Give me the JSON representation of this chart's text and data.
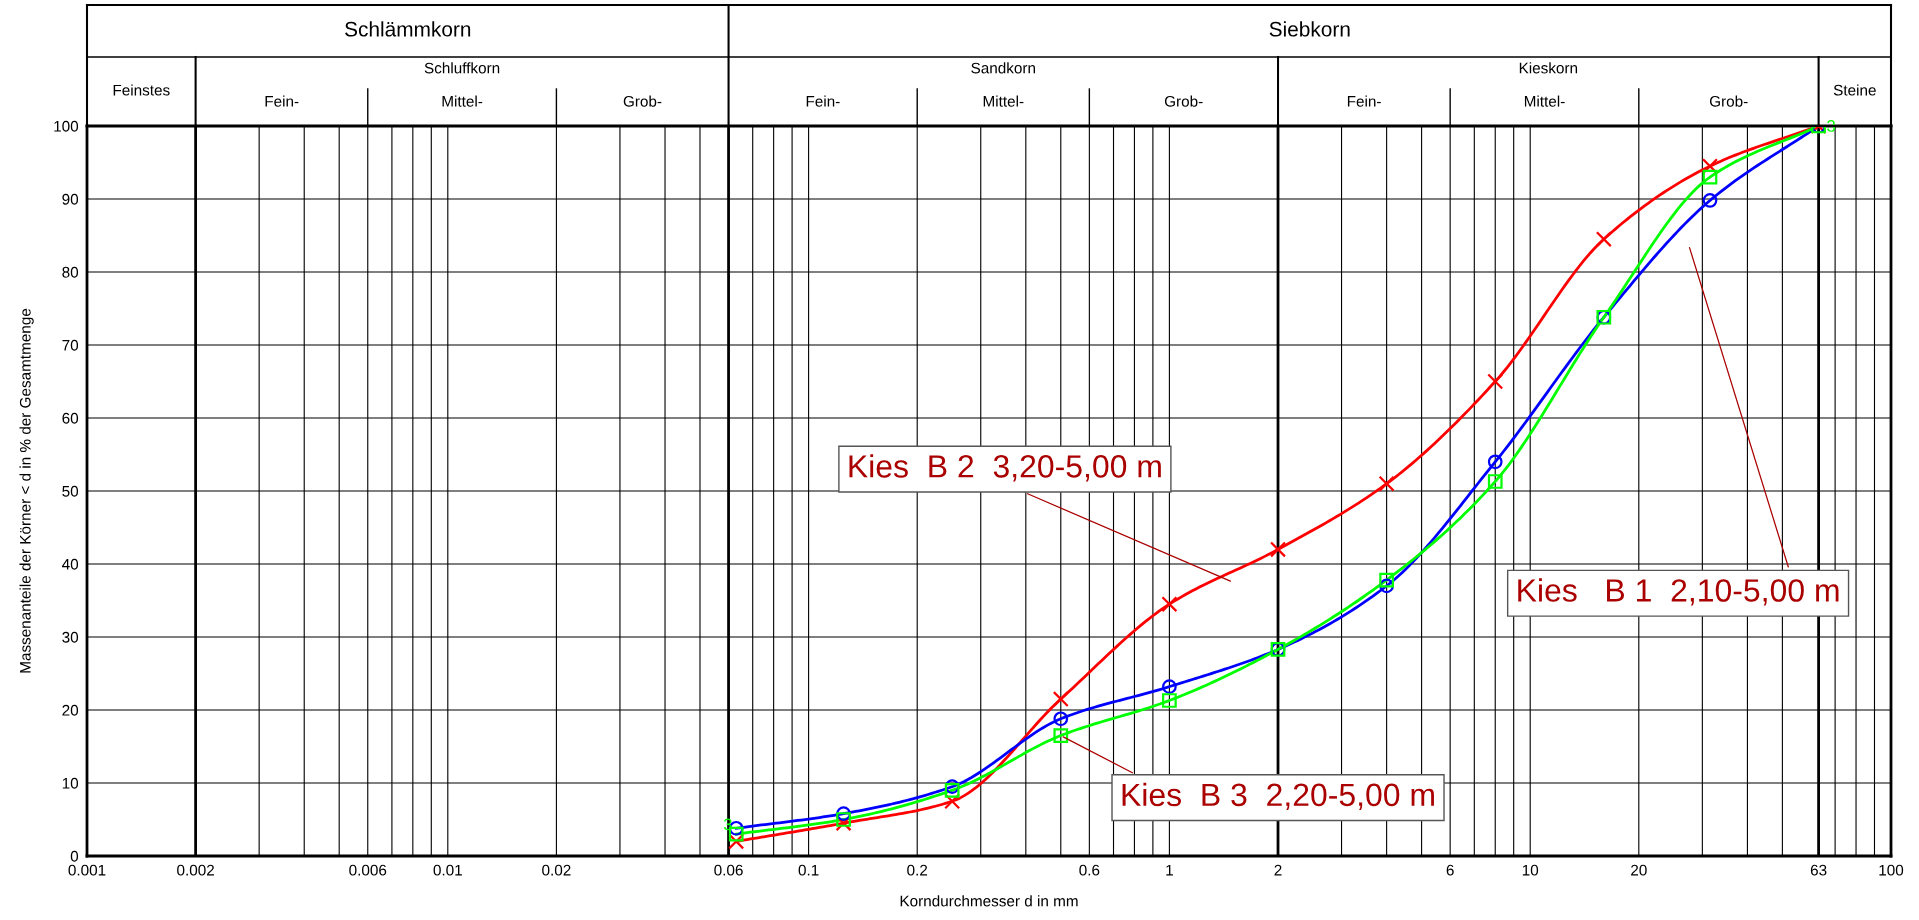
{
  "chart_data": {
    "type": "line",
    "xlabel": "Korndurchmesser d in mm",
    "ylabel": "Massenanteile der Körner < d in % der Gesamtmenge",
    "log": "x",
    "xlim": [
      0.001,
      100
    ],
    "ylim": [
      0,
      100
    ],
    "xticks": [
      0.001,
      0.002,
      {
        "value": 0.003,
        "label": null
      },
      {
        "value": 0.004,
        "label": null
      },
      {
        "value": 0.005,
        "label": null
      },
      0.006,
      {
        "value": 0.007,
        "label": null
      },
      {
        "value": 0.008,
        "label": null
      },
      {
        "value": 0.009,
        "label": null
      },
      0.01,
      0.02,
      {
        "value": 0.03,
        "label": null
      },
      {
        "value": 0.04,
        "label": null
      },
      {
        "value": 0.05,
        "label": null
      },
      0.06,
      {
        "value": 0.07,
        "label": null
      },
      {
        "value": 0.08,
        "label": null
      },
      {
        "value": 0.09,
        "label": null
      },
      0.1,
      0.2,
      {
        "value": 0.3,
        "label": null
      },
      {
        "value": 0.4,
        "label": null
      },
      {
        "value": 0.5,
        "label": null
      },
      0.6,
      {
        "value": 0.7,
        "label": null
      },
      {
        "value": 0.8,
        "label": null
      },
      {
        "value": 0.9,
        "label": null
      },
      1,
      2,
      {
        "value": 3,
        "label": null
      },
      {
        "value": 4,
        "label": null
      },
      {
        "value": 5,
        "label": null
      },
      6,
      {
        "value": 7,
        "label": null
      },
      {
        "value": 8,
        "label": null
      },
      {
        "value": 9,
        "label": null
      },
      10,
      20,
      {
        "value": 30,
        "label": null
      },
      {
        "value": 40,
        "label": null
      },
      {
        "value": 50,
        "label": null
      },
      63,
      {
        "value": 70,
        "label": null
      },
      {
        "value": 80,
        "label": null
      },
      {
        "value": 90,
        "label": null
      },
      100
    ],
    "yticks": [
      0,
      10,
      20,
      30,
      40,
      50,
      60,
      70,
      80,
      90,
      100
    ],
    "grid": true,
    "line_style": "solid",
    "x": [
      0.063,
      0.125,
      0.25,
      0.5,
      1,
      2,
      4,
      8,
      16,
      31.5,
      63
    ],
    "series": [
      {
        "color": "#ff0000",
        "marker": "cross",
        "values": [
          2,
          4.5,
          7.5,
          21.5,
          34.5,
          42,
          51,
          65,
          84.5,
          94.5,
          100
        ]
      },
      {
        "color": "#0000ff",
        "marker": "circle",
        "values": [
          3.8,
          5.8,
          9.5,
          18.8,
          23.2,
          28.3,
          37,
          54,
          73.8,
          89.8,
          100
        ]
      },
      {
        "color": "#00ff00",
        "marker": "square",
        "values": [
          3,
          5,
          9,
          16.5,
          21.3,
          28.3,
          37.8,
          51.3,
          73.8,
          93,
          100
        ]
      }
    ],
    "annotations": [
      "Schlämmkorn",
      "Siebkorn",
      "Feinstes",
      "Schluffkorn",
      "Sandkorn",
      "Kieskorn",
      "Steine",
      "Fein-",
      "Mittel-",
      "Grob-",
      "Fein-",
      "Mittel-",
      "Grob-",
      "Fein-",
      "Mittel-",
      "Grob-",
      "Kies  B 2  3,20-5,00 m",
      "Kies   B 1  2,10-5,00 m",
      {
        "text": "Kies  B 3  2,20-5,00 m",
        "x": 0.5,
        "y": 16.5
      },
      {
        "text": "3",
        "x": 0.063,
        "y": 3
      },
      {
        "text": "3",
        "x": 63,
        "y": 100
      }
    ]
  }
}
